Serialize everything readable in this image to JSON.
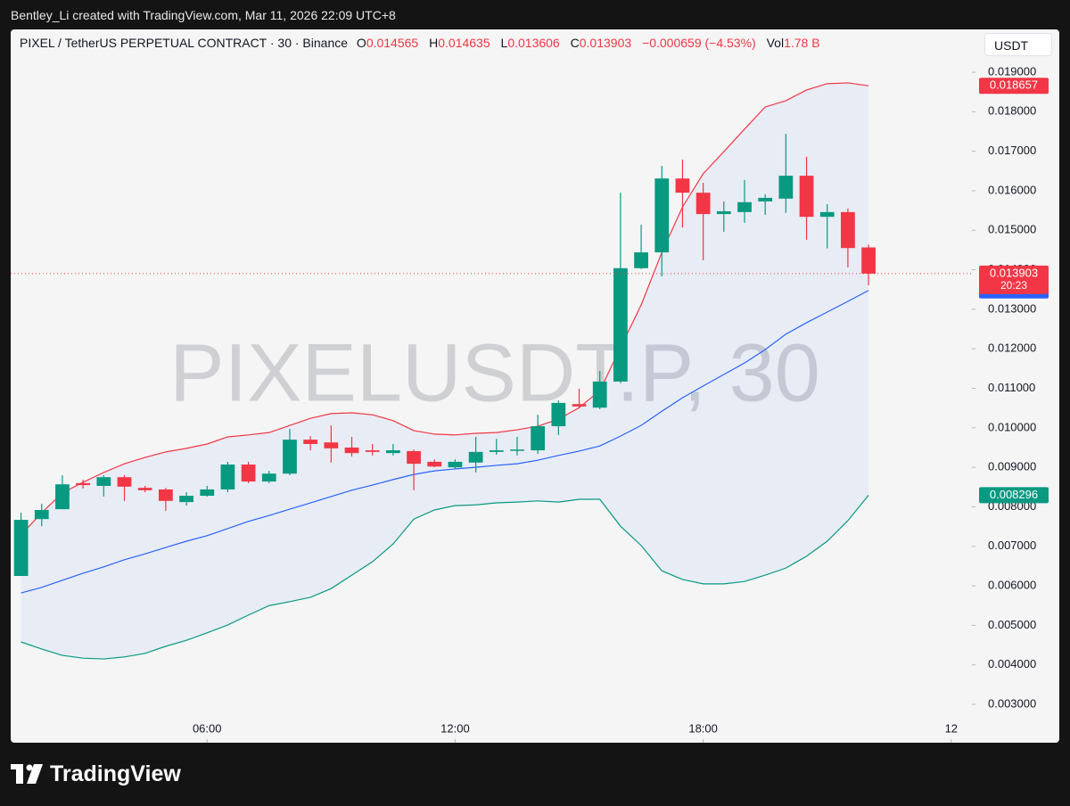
{
  "header": {
    "attribution": "Bentley_Li created with TradingView.com, Mar 11, 2026 22:09 UTC+8"
  },
  "chart_data": {
    "type": "candlestick",
    "symbol": "PIXEL / TetherUS PERPETUAL CONTRACT · 30 · Binance",
    "legend_labels": {
      "open": "O",
      "high": "H",
      "low": "L",
      "close": "C",
      "volume": "Vol"
    },
    "change": "−0.000659 (−4.53%)",
    "volume": "1.78 B",
    "countdown": "20:23",
    "currency": "USDT",
    "watermark": "PIXELUSDT.P, 30",
    "up_color": "#089981",
    "down_color": "#f23645",
    "x": [
      1.5,
      2,
      2.5,
      3,
      3.5,
      4,
      4.5,
      5,
      5.5,
      6,
      6.5,
      7,
      7.5,
      8,
      8.5,
      9,
      9.5,
      10,
      10.5,
      11,
      11.5,
      12,
      12.5,
      13,
      13.5,
      14,
      14.5,
      15,
      15.5,
      16,
      16.5,
      17,
      17.5,
      18,
      18.5,
      19,
      19.5,
      20,
      20.5,
      21,
      21.5,
      22
    ],
    "xlim": [
      1.25,
      24.5
    ],
    "xticks": [
      {
        "value": 6,
        "label": "06:00"
      },
      {
        "value": 12,
        "label": "12:00"
      },
      {
        "value": 18,
        "label": "18:00"
      },
      {
        "value": 24,
        "label": "12"
      }
    ],
    "open": [
      0.00625,
      0.00769,
      0.00794,
      0.0086,
      0.00853,
      0.00875,
      0.00848,
      0.00844,
      0.00812,
      0.00828,
      0.00844,
      0.00907,
      0.00864,
      0.00884,
      0.0097,
      0.00963,
      0.0095,
      0.00943,
      0.00936,
      0.00941,
      0.00914,
      0.009,
      0.00912,
      0.00939,
      0.00943,
      0.00943,
      0.01004,
      0.0106,
      0.01051,
      0.01117,
      0.01404,
      0.01444,
      0.01631,
      0.01595,
      0.01541,
      0.01546,
      0.01573,
      0.0158,
      0.01638,
      0.01534,
      0.01546,
      0.014565
    ],
    "high": [
      0.00785,
      0.00808,
      0.0088,
      0.00869,
      0.0088,
      0.0088,
      0.00853,
      0.00848,
      0.00837,
      0.00853,
      0.00914,
      0.00914,
      0.00891,
      0.00997,
      0.00979,
      0.01006,
      0.00977,
      0.00959,
      0.00959,
      0.00945,
      0.0092,
      0.0092,
      0.00977,
      0.00972,
      0.00977,
      0.01033,
      0.01069,
      0.01099,
      0.01144,
      0.01595,
      0.01514,
      0.01663,
      0.01679,
      0.0162,
      0.01573,
      0.01627,
      0.01591,
      0.01744,
      0.01686,
      0.01566,
      0.01555,
      0.014635
    ],
    "low": [
      0.00625,
      0.00751,
      0.00794,
      0.00846,
      0.00826,
      0.00815,
      0.00837,
      0.0079,
      0.00803,
      0.00826,
      0.00837,
      0.0086,
      0.0086,
      0.0088,
      0.00943,
      0.00912,
      0.00927,
      0.0093,
      0.0093,
      0.00842,
      0.009,
      0.00896,
      0.00887,
      0.00932,
      0.0093,
      0.00934,
      0.00982,
      0.01049,
      0.01047,
      0.01113,
      0.01402,
      0.01383,
      0.01507,
      0.01424,
      0.01496,
      0.01519,
      0.01539,
      0.01544,
      0.01476,
      0.01454,
      0.01406,
      0.013606
    ],
    "close": [
      0.00767,
      0.00792,
      0.00857,
      0.00855,
      0.00875,
      0.00851,
      0.00842,
      0.00815,
      0.00828,
      0.00844,
      0.00907,
      0.00864,
      0.00884,
      0.0097,
      0.00959,
      0.00948,
      0.00936,
      0.00939,
      0.00943,
      0.00909,
      0.00902,
      0.00914,
      0.00939,
      0.00943,
      0.00945,
      0.01004,
      0.01063,
      0.01054,
      0.01117,
      0.01404,
      0.01444,
      0.01631,
      0.01595,
      0.01541,
      0.01548,
      0.01571,
      0.01582,
      0.01638,
      0.01534,
      0.01546,
      0.01455,
      0.013903
    ],
    "upper_band": {
      "color": "#f23645",
      "values": [
        0.00729,
        0.00785,
        0.00835,
        0.00862,
        0.00887,
        0.00909,
        0.00925,
        0.00939,
        0.00948,
        0.00959,
        0.00977,
        0.00982,
        0.00988,
        0.01006,
        0.01024,
        0.01036,
        0.01038,
        0.01033,
        0.01018,
        0.00993,
        0.00984,
        0.00982,
        0.00986,
        0.00988,
        0.00995,
        0.01004,
        0.01022,
        0.01051,
        0.01094,
        0.01203,
        0.01311,
        0.01444,
        0.01559,
        0.01643,
        0.01699,
        0.01756,
        0.01812,
        0.01828,
        0.01855,
        0.01871,
        0.01873,
        0.018657
      ]
    },
    "middle_band": {
      "color": "#2962ff",
      "values": [
        0.00582,
        0.00596,
        0.00614,
        0.00632,
        0.00648,
        0.00666,
        0.00681,
        0.00697,
        0.00713,
        0.00727,
        0.00745,
        0.00763,
        0.00778,
        0.00794,
        0.0081,
        0.00826,
        0.00842,
        0.00855,
        0.00869,
        0.00882,
        0.00891,
        0.00896,
        0.009,
        0.00905,
        0.00909,
        0.00918,
        0.0093,
        0.00941,
        0.00954,
        0.00979,
        0.01006,
        0.01042,
        0.01076,
        0.01106,
        0.01135,
        0.01164,
        0.01198,
        0.01237,
        0.01266,
        0.01293,
        0.0132,
        0.013477
      ]
    },
    "lower_band": {
      "color": "#089981",
      "values": [
        0.00458,
        0.0044,
        0.00424,
        0.00417,
        0.00415,
        0.0042,
        0.00429,
        0.00447,
        0.00462,
        0.00481,
        0.00501,
        0.00526,
        0.0055,
        0.0056,
        0.00571,
        0.00593,
        0.00627,
        0.00661,
        0.00706,
        0.00769,
        0.00792,
        0.00803,
        0.00805,
        0.0081,
        0.00812,
        0.00815,
        0.00812,
        0.00819,
        0.00819,
        0.00751,
        0.00702,
        0.00638,
        0.00616,
        0.00605,
        0.00605,
        0.00611,
        0.00627,
        0.00645,
        0.00675,
        0.00713,
        0.00765,
        0.008296
      ]
    },
    "ylim": [
      0.00203,
      0.019925
    ],
    "yticks": [
      {
        "value": 0.003,
        "label": "0.003000"
      },
      {
        "value": 0.004,
        "label": "0.004000"
      },
      {
        "value": 0.005,
        "label": "0.005000"
      },
      {
        "value": 0.006,
        "label": "0.006000"
      },
      {
        "value": 0.007,
        "label": "0.007000"
      },
      {
        "value": 0.008,
        "label": "0.008000"
      },
      {
        "value": 0.009,
        "label": "0.009000"
      },
      {
        "value": 0.01,
        "label": "0.010000"
      },
      {
        "value": 0.011,
        "label": "0.011000"
      },
      {
        "value": 0.012,
        "label": "0.012000"
      },
      {
        "value": 0.013,
        "label": "0.013000"
      },
      {
        "value": 0.014,
        "label": "0.014000"
      },
      {
        "value": 0.015,
        "label": "0.015000"
      },
      {
        "value": 0.016,
        "label": "0.016000"
      },
      {
        "value": 0.017,
        "label": "0.017000"
      },
      {
        "value": 0.018,
        "label": "0.018000"
      },
      {
        "value": 0.019,
        "label": "0.019000"
      }
    ]
  },
  "footer": {
    "brand": "TradingView"
  }
}
